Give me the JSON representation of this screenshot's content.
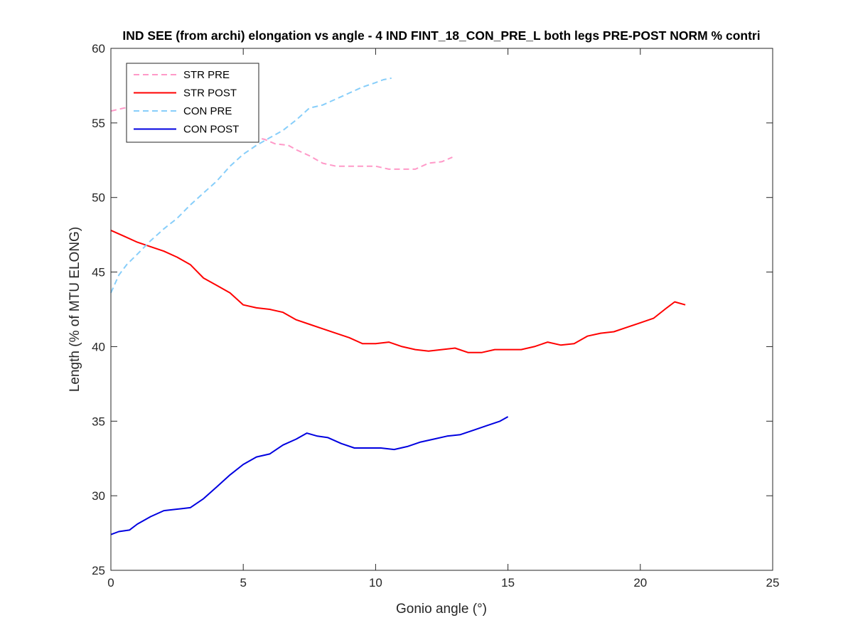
{
  "chart_data": {
    "type": "line",
    "title": "IND SEE (from archi) elongation vs angle - 4 IND FINT_18_CON_PRE_L both legs PRE-POST NORM % contri",
    "xlabel": "Gonio angle (°)",
    "ylabel": "Length (% of MTU ELONG)",
    "xlim": [
      0,
      25
    ],
    "ylim": [
      25,
      60
    ],
    "xticks": [
      "0",
      "5",
      "10",
      "15",
      "20",
      "25"
    ],
    "yticks": [
      "25",
      "30",
      "35",
      "40",
      "45",
      "50",
      "55",
      "60"
    ],
    "grid": false,
    "legend_position": "top-left",
    "series": [
      {
        "name": "STR PRE",
        "color": "#ff99c8",
        "style": "dashed",
        "points": [
          [
            0,
            55.8
          ],
          [
            0.5,
            56.0
          ],
          [
            1,
            56.1
          ],
          [
            1.5,
            56.1
          ],
          [
            2,
            56.0
          ],
          [
            2.5,
            55.9
          ],
          [
            3,
            55.8
          ],
          [
            3.5,
            55.5
          ],
          [
            4,
            55.1
          ],
          [
            4.5,
            54.6
          ],
          [
            5,
            54.2
          ],
          [
            5.5,
            54.0
          ],
          [
            5.8,
            53.9
          ],
          [
            6.2,
            53.6
          ],
          [
            6.7,
            53.5
          ],
          [
            7.0,
            53.2
          ],
          [
            7.5,
            52.8
          ],
          [
            8.0,
            52.3
          ],
          [
            8.5,
            52.1
          ],
          [
            9.0,
            52.1
          ],
          [
            9.5,
            52.1
          ],
          [
            10.0,
            52.1
          ],
          [
            10.5,
            51.9
          ],
          [
            11.0,
            51.9
          ],
          [
            11.5,
            51.9
          ],
          [
            12.0,
            52.3
          ],
          [
            12.5,
            52.4
          ],
          [
            12.9,
            52.7
          ]
        ]
      },
      {
        "name": "STR POST",
        "color": "#ff0000",
        "style": "solid",
        "points": [
          [
            0,
            47.8
          ],
          [
            0.5,
            47.4
          ],
          [
            1,
            47.0
          ],
          [
            1.5,
            46.7
          ],
          [
            2,
            46.4
          ],
          [
            2.5,
            46.0
          ],
          [
            3,
            45.5
          ],
          [
            3.5,
            44.6
          ],
          [
            4,
            44.1
          ],
          [
            4.5,
            43.6
          ],
          [
            5,
            42.8
          ],
          [
            5.5,
            42.6
          ],
          [
            6,
            42.5
          ],
          [
            6.5,
            42.3
          ],
          [
            7,
            41.8
          ],
          [
            7.5,
            41.5
          ],
          [
            8,
            41.2
          ],
          [
            8.5,
            40.9
          ],
          [
            9,
            40.6
          ],
          [
            9.5,
            40.2
          ],
          [
            10,
            40.2
          ],
          [
            10.5,
            40.3
          ],
          [
            11,
            40.0
          ],
          [
            11.5,
            39.8
          ],
          [
            12,
            39.7
          ],
          [
            12.5,
            39.8
          ],
          [
            13,
            39.9
          ],
          [
            13.5,
            39.6
          ],
          [
            14,
            39.6
          ],
          [
            14.5,
            39.8
          ],
          [
            15,
            39.8
          ],
          [
            15.5,
            39.8
          ],
          [
            16,
            40.0
          ],
          [
            16.5,
            40.3
          ],
          [
            17,
            40.1
          ],
          [
            17.5,
            40.2
          ],
          [
            18,
            40.7
          ],
          [
            18.5,
            40.9
          ],
          [
            19,
            41.0
          ],
          [
            19.5,
            41.3
          ],
          [
            20,
            41.6
          ],
          [
            20.5,
            41.9
          ],
          [
            21,
            42.6
          ],
          [
            21.3,
            43.0
          ],
          [
            21.7,
            42.8
          ]
        ]
      },
      {
        "name": "CON PRE",
        "color": "#87cefa",
        "style": "dashed",
        "points": [
          [
            0,
            43.6
          ],
          [
            0.3,
            44.8
          ],
          [
            0.6,
            45.5
          ],
          [
            1,
            46.2
          ],
          [
            1.5,
            47.1
          ],
          [
            2,
            47.9
          ],
          [
            2.5,
            48.6
          ],
          [
            3,
            49.5
          ],
          [
            3.5,
            50.3
          ],
          [
            4,
            51.1
          ],
          [
            4.5,
            52.1
          ],
          [
            5,
            52.9
          ],
          [
            5.5,
            53.5
          ],
          [
            6,
            54.0
          ],
          [
            6.5,
            54.5
          ],
          [
            7,
            55.2
          ],
          [
            7.5,
            56.0
          ],
          [
            8,
            56.2
          ],
          [
            8.5,
            56.6
          ],
          [
            9,
            57.0
          ],
          [
            9.5,
            57.4
          ],
          [
            10,
            57.7
          ],
          [
            10.3,
            57.9
          ],
          [
            10.6,
            58.0
          ]
        ]
      },
      {
        "name": "CON POST",
        "color": "#0000e0",
        "style": "solid",
        "points": [
          [
            0,
            27.4
          ],
          [
            0.3,
            27.6
          ],
          [
            0.7,
            27.7
          ],
          [
            1,
            28.1
          ],
          [
            1.5,
            28.6
          ],
          [
            2,
            29.0
          ],
          [
            2.5,
            29.1
          ],
          [
            3,
            29.2
          ],
          [
            3.5,
            29.8
          ],
          [
            4,
            30.6
          ],
          [
            4.5,
            31.4
          ],
          [
            5,
            32.1
          ],
          [
            5.5,
            32.6
          ],
          [
            6,
            32.8
          ],
          [
            6.5,
            33.4
          ],
          [
            7,
            33.8
          ],
          [
            7.4,
            34.2
          ],
          [
            7.8,
            34.0
          ],
          [
            8.2,
            33.9
          ],
          [
            8.7,
            33.5
          ],
          [
            9.2,
            33.2
          ],
          [
            9.7,
            33.2
          ],
          [
            10.2,
            33.2
          ],
          [
            10.7,
            33.1
          ],
          [
            11.2,
            33.3
          ],
          [
            11.7,
            33.6
          ],
          [
            12.2,
            33.8
          ],
          [
            12.7,
            34.0
          ],
          [
            13.2,
            34.1
          ],
          [
            13.7,
            34.4
          ],
          [
            14.2,
            34.7
          ],
          [
            14.7,
            35.0
          ],
          [
            15.0,
            35.3
          ]
        ]
      }
    ]
  }
}
